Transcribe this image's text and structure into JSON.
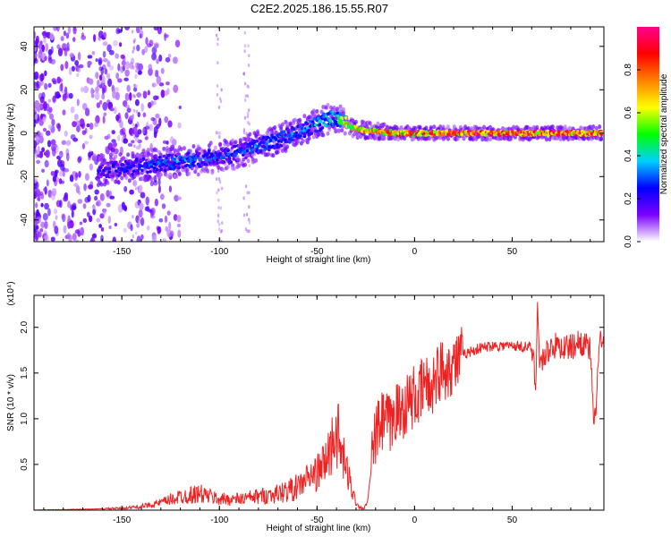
{
  "title": "C2E2.2025.186.15.55.R07",
  "chart_data": [
    {
      "type": "heatmap",
      "xlabel": "Height of straight line (km)",
      "ylabel": "Frequency (Hz)",
      "xlim": [
        -195,
        97
      ],
      "ylim": [
        -50,
        49
      ],
      "xticks": [
        -150,
        -100,
        -50,
        0,
        50
      ],
      "yticks": [
        -40,
        -20,
        0,
        20,
        40
      ],
      "colorbar": {
        "label": "Normalized spectral amplitude",
        "range": [
          0,
          1
        ],
        "ticks": [
          "0.0",
          "0.2",
          "0.4",
          "0.6",
          "0.8"
        ],
        "tick_values": [
          0,
          0.2,
          0.4,
          0.6,
          0.8
        ],
        "colors": [
          "#ffffff",
          "#7b00ff",
          "#0000ff",
          "#00d0ff",
          "#00ff00",
          "#ffff00",
          "#ff8000",
          "#ff0000",
          "#ff0090"
        ]
      },
      "ridge": {
        "x": [
          -160,
          -150,
          -140,
          -130,
          -120,
          -110,
          -100,
          -90,
          -80,
          -70,
          -60,
          -50,
          -45,
          -40,
          -35,
          -30,
          -20,
          -10,
          0,
          10,
          20,
          50,
          95
        ],
        "frequency": [
          -17,
          -16,
          -15,
          -14,
          -13,
          -12,
          -11,
          -9,
          -6,
          -3,
          0,
          4,
          6,
          7,
          4,
          2,
          1,
          0,
          0,
          0,
          0,
          0,
          0
        ],
        "amplitude": [
          0.25,
          0.3,
          0.3,
          0.35,
          0.35,
          0.35,
          0.3,
          0.3,
          0.35,
          0.35,
          0.35,
          0.4,
          0.45,
          0.5,
          0.7,
          0.8,
          0.85,
          0.9,
          0.92,
          0.94,
          0.95,
          0.95,
          0.95
        ]
      }
    },
    {
      "type": "line",
      "xlabel": "Height of straight line (km)",
      "ylabel": "SNR (10 * v/v)",
      "scale_label": "(x10⁴)",
      "xlim": [
        -195,
        97
      ],
      "ylim": [
        0,
        2.35
      ],
      "xticks": [
        -150,
        -100,
        -50,
        0,
        50
      ],
      "yticks": [
        0.5,
        1.0,
        1.5,
        2.0
      ],
      "color": "#ee2222",
      "series": [
        {
          "x": [
            -195,
            -170,
            -150,
            -140,
            -130,
            -120,
            -110,
            -100,
            -90,
            -80,
            -70,
            -60,
            -55,
            -50,
            -45,
            -42,
            -40,
            -38,
            -35,
            -30,
            -28,
            -26,
            -25,
            -24,
            -22,
            -20,
            -18,
            -15,
            -12,
            -10,
            -8,
            -5,
            -2,
            0,
            2,
            5,
            8,
            10,
            12,
            15,
            20,
            25,
            30,
            35,
            40,
            50,
            60,
            62,
            63,
            64,
            70,
            80,
            85,
            90,
            92,
            95,
            97
          ],
          "y": [
            0.0,
            0.01,
            0.02,
            0.04,
            0.08,
            0.15,
            0.18,
            0.12,
            0.12,
            0.15,
            0.18,
            0.25,
            0.35,
            0.4,
            0.55,
            0.75,
            0.9,
            0.65,
            0.45,
            0.08,
            0.03,
            0.02,
            0.05,
            0.1,
            0.5,
            0.8,
            0.9,
            1.0,
            0.9,
            1.1,
            1.05,
            1.15,
            1.2,
            1.25,
            1.2,
            1.4,
            1.3,
            1.45,
            1.5,
            1.55,
            1.6,
            1.7,
            1.75,
            1.78,
            1.8,
            1.8,
            1.78,
            1.4,
            2.25,
            1.6,
            1.8,
            1.78,
            1.85,
            1.75,
            0.85,
            1.9,
            1.75
          ]
        }
      ]
    }
  ]
}
